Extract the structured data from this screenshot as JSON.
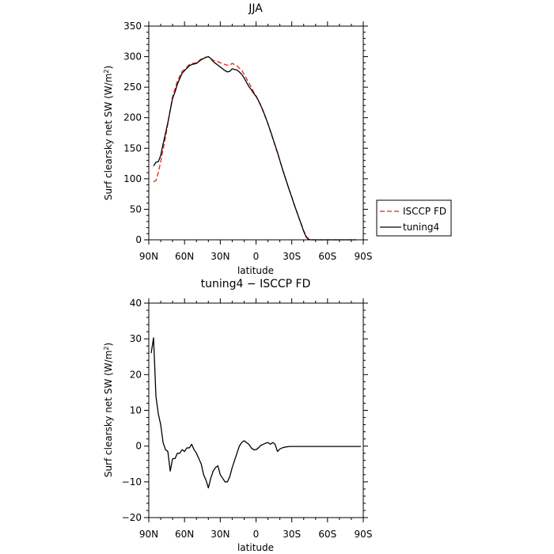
{
  "chart_data": [
    {
      "type": "line",
      "title": "JJA",
      "xlabel": "latitude",
      "ylabel": "Surf clearsky net SW (W/m",
      "ylabel_sup": "2",
      "ylabel_end": ")",
      "xlim": [
        90,
        -90
      ],
      "ylim": [
        0,
        350
      ],
      "xticks": [
        90,
        60,
        30,
        0,
        -30,
        -60,
        -90
      ],
      "xtick_labels": [
        "90N",
        "60N",
        "30N",
        "0",
        "30S",
        "60S",
        "90S"
      ],
      "yticks": [
        0,
        50,
        100,
        150,
        200,
        250,
        300,
        350
      ],
      "ytick_labels": [
        "0",
        "50",
        "100",
        "150",
        "200",
        "250",
        "300",
        "350"
      ],
      "legend": "outside-right",
      "series": [
        {
          "name": "ISCCP FD",
          "color": "#e8201c",
          "dash": "dashed",
          "x": [
            86,
            84,
            82,
            80,
            78,
            76,
            74,
            72,
            70,
            68,
            66,
            64,
            62,
            60,
            58,
            56,
            54,
            52,
            50,
            48,
            46,
            44,
            42,
            40,
            38,
            36,
            34,
            32,
            30,
            28,
            26,
            24,
            22,
            20,
            18,
            16,
            14,
            12,
            10,
            8,
            6,
            4,
            2,
            0,
            -2,
            -4,
            -6,
            -8,
            -10,
            -12,
            -14,
            -16,
            -18,
            -20,
            -22,
            -24,
            -26,
            -28,
            -30,
            -32,
            -34,
            -36,
            -38,
            -40,
            -42,
            -44,
            -46,
            -48,
            -50,
            -52,
            -54,
            -56,
            -58,
            -60,
            -62,
            -64,
            -66,
            -68,
            -70,
            -72,
            -74,
            -76,
            -78,
            -80,
            -82,
            -84
          ],
          "y": [
            95,
            97,
            110,
            128,
            148,
            168,
            190,
            213,
            235,
            247,
            260,
            268,
            276,
            279,
            283,
            287,
            289,
            289,
            290,
            293,
            296,
            298,
            299,
            300,
            297,
            294,
            293,
            292,
            290,
            289,
            287,
            286,
            286,
            289,
            287,
            285,
            281,
            278,
            271,
            264,
            257,
            250,
            242,
            236,
            228,
            220,
            210,
            200,
            190,
            178,
            166,
            154,
            142,
            130,
            117,
            105,
            93,
            81,
            70,
            58,
            47,
            36,
            26,
            15,
            6,
            1.5,
            0.5,
            0,
            0,
            0,
            0,
            0,
            0,
            0,
            0,
            0,
            0,
            0,
            0,
            0,
            0,
            0,
            0,
            0,
            0,
            0
          ]
        },
        {
          "name": "tuning4",
          "color": "#000000",
          "dash": "solid",
          "x": [
            86,
            84,
            82,
            80,
            78,
            76,
            74,
            72,
            70,
            68,
            66,
            64,
            62,
            60,
            58,
            56,
            54,
            52,
            50,
            48,
            46,
            44,
            42,
            40,
            38,
            36,
            34,
            32,
            30,
            28,
            26,
            24,
            22,
            20,
            18,
            16,
            14,
            12,
            10,
            8,
            6,
            4,
            2,
            0,
            -2,
            -4,
            -6,
            -8,
            -10,
            -12,
            -14,
            -16,
            -18,
            -20,
            -22,
            -24,
            -26,
            -28,
            -30,
            -32,
            -34,
            -36,
            -38,
            -40,
            -42,
            -44,
            -46,
            -48,
            -50,
            -52,
            -54,
            -56,
            -58,
            -60,
            -62,
            -64,
            -66,
            -68,
            -70,
            -72,
            -74,
            -76,
            -78,
            -80,
            -82,
            -84
          ],
          "y": [
            121,
            127,
            128,
            138,
            157,
            174,
            192,
            212,
            232,
            242,
            255,
            264,
            273,
            277,
            281,
            285,
            287,
            288,
            289,
            292,
            295,
            297,
            299,
            300,
            297,
            292,
            289,
            286,
            283,
            280,
            277,
            275,
            276,
            280,
            279,
            278,
            275,
            271,
            265,
            258,
            251,
            246,
            240,
            235,
            228,
            220,
            211,
            201,
            190,
            179,
            167,
            155,
            143,
            130,
            117,
            105,
            93,
            81,
            70,
            58,
            47,
            36,
            25,
            14,
            5,
            0.6,
            0,
            0,
            0,
            0,
            0,
            0,
            0,
            0,
            0,
            0,
            0,
            0,
            0,
            0,
            0,
            0,
            0,
            0,
            0,
            0
          ]
        }
      ]
    },
    {
      "type": "line",
      "title": "tuning4 − ISCCP FD",
      "xlabel": "latitude",
      "ylabel": "Surf clearsky net SW (W/m",
      "ylabel_sup": "2",
      "ylabel_end": ")",
      "xlim": [
        90,
        -90
      ],
      "ylim": [
        -20,
        40
      ],
      "xticks": [
        90,
        60,
        30,
        0,
        -30,
        -60,
        -90
      ],
      "xtick_labels": [
        "90N",
        "60N",
        "30N",
        "0",
        "30S",
        "60S",
        "90S"
      ],
      "yticks": [
        -20,
        -10,
        0,
        10,
        20,
        30,
        40
      ],
      "ytick_labels": [
        "−20",
        "−10",
        "0",
        "10",
        "20",
        "30",
        "40"
      ],
      "series": [
        {
          "color": "#000000",
          "dash": "solid",
          "x": [
            88,
            86,
            84,
            82,
            80,
            78,
            76,
            74,
            72,
            70,
            68,
            66,
            64,
            62,
            60,
            58,
            56,
            54,
            52,
            50,
            48,
            46,
            44,
            42,
            40,
            38,
            36,
            34,
            32,
            30,
            28,
            26,
            24,
            22,
            20,
            18,
            16,
            14,
            12,
            10,
            8,
            6,
            4,
            2,
            0,
            -2,
            -4,
            -6,
            -8,
            -10,
            -12,
            -14,
            -16,
            -18,
            -20,
            -22,
            -24,
            -26,
            -28,
            -30,
            -32,
            -34,
            -36,
            -38,
            -40,
            -42,
            -44,
            -46,
            -48,
            -50,
            -52,
            -54,
            -56,
            -58,
            -60,
            -62,
            -64,
            -66,
            -68,
            -70,
            -72,
            -74,
            -76,
            -78,
            -80,
            -82,
            -84,
            -86,
            -88
          ],
          "y": [
            26,
            30.3,
            14,
            9,
            6,
            1,
            -1,
            -1.5,
            -7,
            -3.5,
            -3.5,
            -2,
            -2,
            -1,
            -1.5,
            -0.5,
            -0.5,
            0.5,
            -1,
            -2,
            -3.5,
            -5,
            -8,
            -9.5,
            -11.7,
            -9,
            -7,
            -6,
            -5.5,
            -8,
            -9,
            -10,
            -10,
            -8.5,
            -6,
            -4,
            -2,
            0,
            1,
            1.5,
            1,
            0.5,
            -0.5,
            -1,
            -1,
            -0.5,
            0.2,
            0.5,
            0.8,
            1,
            0.5,
            1,
            0.5,
            -1.5,
            -0.8,
            -0.5,
            -0.3,
            -0.2,
            -0.1,
            -0.1,
            -0.1,
            -0.1,
            -0.1,
            -0.1,
            -0.1,
            -0.1,
            -0.1,
            -0.1,
            -0.1,
            -0.1,
            -0.1,
            -0.1,
            -0.1,
            -0.1,
            -0.1,
            -0.1,
            -0.1,
            -0.1,
            -0.1,
            -0.1,
            -0.1,
            -0.1,
            -0.1,
            -0.1,
            -0.1,
            -0.1,
            -0.1,
            -0.1,
            -0.1
          ]
        }
      ]
    }
  ]
}
